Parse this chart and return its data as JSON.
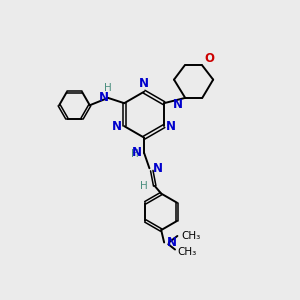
{
  "background_color": "#ebebeb",
  "bond_color": "#000000",
  "N_color": "#0000cc",
  "O_color": "#cc0000",
  "H_color": "#4a8f7f",
  "figsize": [
    3.0,
    3.0
  ],
  "dpi": 100,
  "xlim": [
    0,
    10
  ],
  "ylim": [
    0,
    10
  ]
}
